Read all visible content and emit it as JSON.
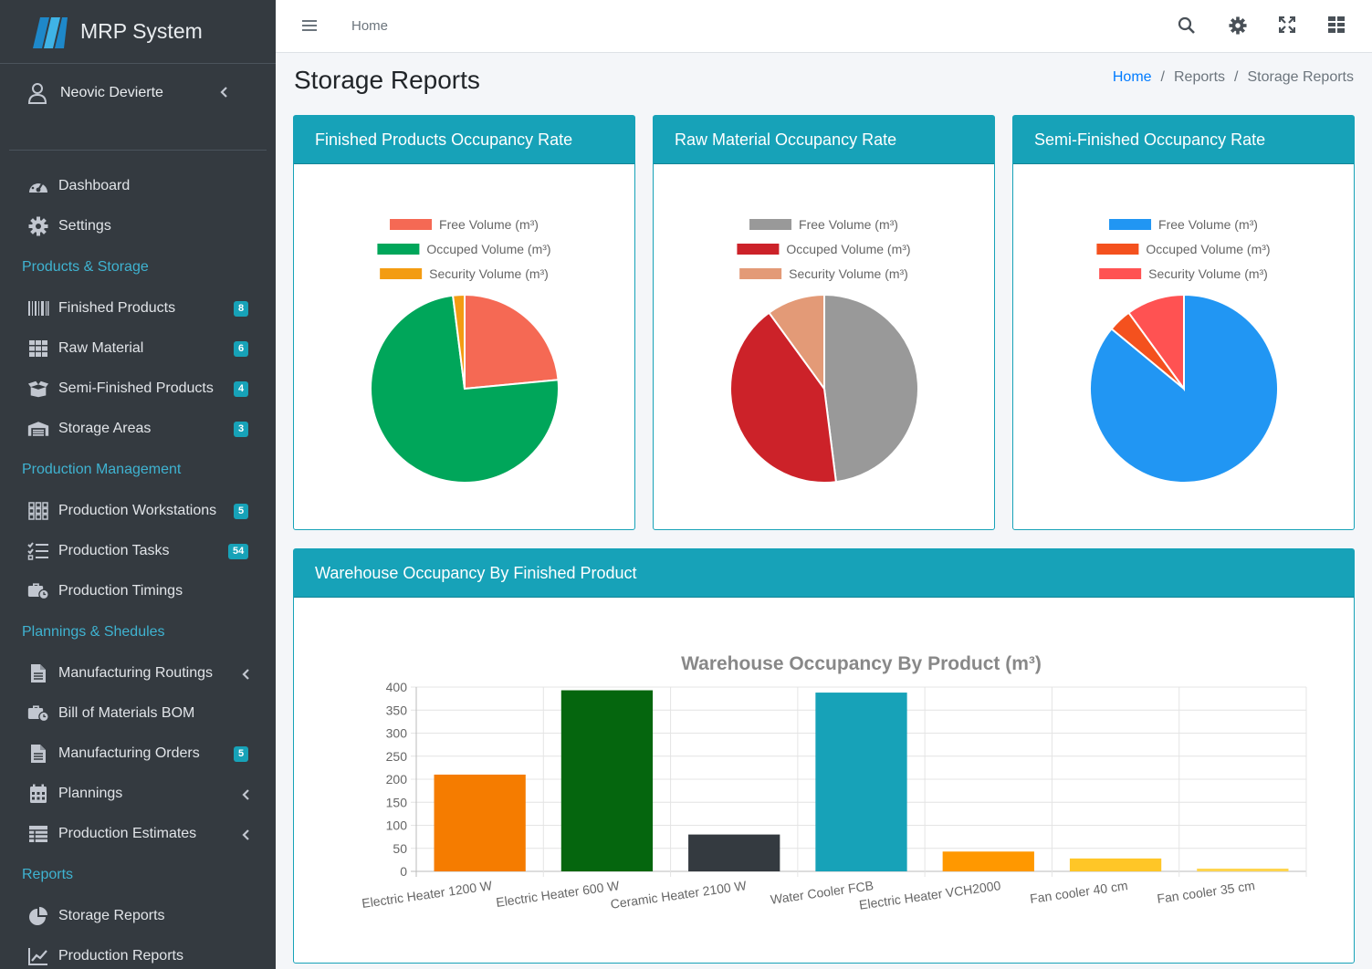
{
  "app": {
    "title": "MRP System",
    "user": "Neovic Devierte"
  },
  "sidebar": {
    "items": [
      {
        "label": "Dashboard",
        "icon": "dashboard-icon"
      },
      {
        "label": "Settings",
        "icon": "gear-icon"
      }
    ],
    "sections": [
      {
        "header": "Products & Storage",
        "items": [
          {
            "label": "Finished Products",
            "badge": "8",
            "icon": "barcode-icon"
          },
          {
            "label": "Raw Material",
            "badge": "6",
            "icon": "grid-icon"
          },
          {
            "label": "Semi-Finished Products",
            "badge": "4",
            "icon": "box-open-icon"
          },
          {
            "label": "Storage Areas",
            "badge": "3",
            "icon": "warehouse-icon"
          }
        ]
      },
      {
        "header": "Production Management",
        "items": [
          {
            "label": "Production Workstations",
            "badge": "5",
            "icon": "workstation-grid-icon"
          },
          {
            "label": "Production Tasks",
            "badge": "54",
            "icon": "tasks-icon"
          },
          {
            "label": "Production Timings",
            "icon": "toolbox-clock-icon"
          }
        ]
      },
      {
        "header": "Plannings & Shedules",
        "items": [
          {
            "label": "Manufacturing Routings",
            "icon": "file-icon"
          },
          {
            "label": "Bill of Materials BOM",
            "icon": "toolbox-clock-icon"
          },
          {
            "label": "Manufacturing Orders",
            "badge": "5",
            "icon": "file-icon"
          },
          {
            "label": "Plannings",
            "icon": "calendar-icon"
          },
          {
            "label": "Production Estimates",
            "icon": "table-icon"
          }
        ]
      },
      {
        "header": "Reports",
        "items": [
          {
            "label": "Storage Reports",
            "icon": "pie-chart-icon"
          },
          {
            "label": "Production Reports",
            "icon": "line-chart-icon"
          }
        ]
      }
    ]
  },
  "topbar": {
    "home": "Home"
  },
  "page": {
    "title": "Storage Reports",
    "breadcrumb": [
      "Home",
      "Reports",
      "Storage Reports"
    ],
    "sep": "/"
  },
  "cards": {
    "finished": "Finished Products Occupancy Rate",
    "raw": "Raw Material Occupancy Rate",
    "semi": "Semi-Finished Occupancy Rate",
    "warehouse": "Warehouse Occupancy By Finished Product"
  },
  "chart_data": [
    {
      "type": "pie",
      "labels": [
        "Free Volume (m³)",
        "Occuped Volume (m³)",
        "Security Volume (m³)"
      ],
      "values": [
        23.5,
        74.5,
        2
      ],
      "colors": [
        "#f56954",
        "#00a65a",
        "#f39c12"
      ],
      "legend": "top"
    },
    {
      "type": "pie",
      "labels": [
        "Free Volume (m³)",
        "Occuped Volume (m³)",
        "Security Volume (m³)"
      ],
      "values": [
        48,
        42,
        10
      ],
      "colors": [
        "#999999",
        "#cc2229",
        "#e39a77"
      ],
      "legend": "top"
    },
    {
      "type": "pie",
      "labels": [
        "Free Volume (m³)",
        "Occuped Volume (m³)",
        "Security Volume (m³)"
      ],
      "values": [
        86,
        4,
        10
      ],
      "colors": [
        "#2196f3",
        "#f4511e",
        "#ff5252"
      ],
      "legend": "top"
    },
    {
      "type": "bar",
      "title": "Warehouse Occupancy By Product (m³)",
      "categories": [
        "Electric Heater 1200 W",
        "Electric Heater 600 W",
        "Ceramic Heater 2100 W",
        "Water Cooler FCB",
        "Electric Heater VCH2000",
        "Fan cooler 40 cm",
        "Fan cooler 35 cm"
      ],
      "values": [
        210,
        393,
        80,
        388,
        43,
        28,
        6
      ],
      "colors": [
        "#f57c00",
        "#05660e",
        "#343a40",
        "#17a2b8",
        "#ff9800",
        "#ffc627",
        "#ffd54f"
      ],
      "ylim": [
        0,
        400
      ],
      "yticks": [
        0,
        50,
        100,
        150,
        200,
        250,
        300,
        350,
        400
      ],
      "grid": true
    }
  ]
}
